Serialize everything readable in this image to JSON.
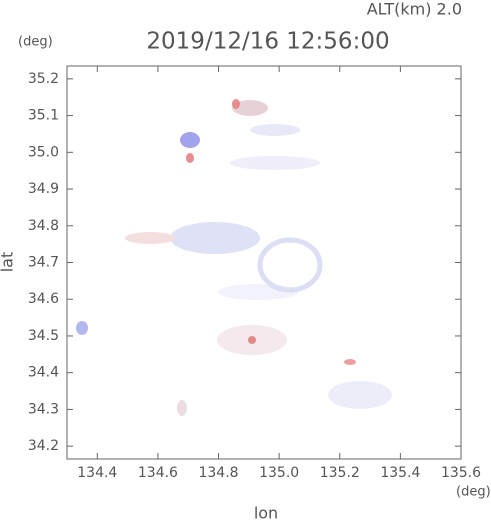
{
  "chart_data": {
    "type": "scatter",
    "title": "2019/12/16 12:56:00",
    "annotation": "ALT(km) 2.0",
    "y_unit": "(deg)",
    "x_unit": "(deg)",
    "x_label": "lon",
    "y_label": "lat",
    "xlim": [
      134.3,
      135.6
    ],
    "xticks": [
      134.4,
      134.6,
      134.8,
      {
        "value": 135.0,
        "label": "135.0"
      },
      135.2,
      135.4,
      135.6
    ],
    "ylim": [
      34.165,
      35.235
    ],
    "yticks": [
      34.2,
      34.3,
      34.4,
      34.5,
      34.6,
      34.7,
      34.8,
      34.9,
      {
        "value": 35.0,
        "label": "35.0"
      },
      35.1,
      35.2
    ]
  }
}
